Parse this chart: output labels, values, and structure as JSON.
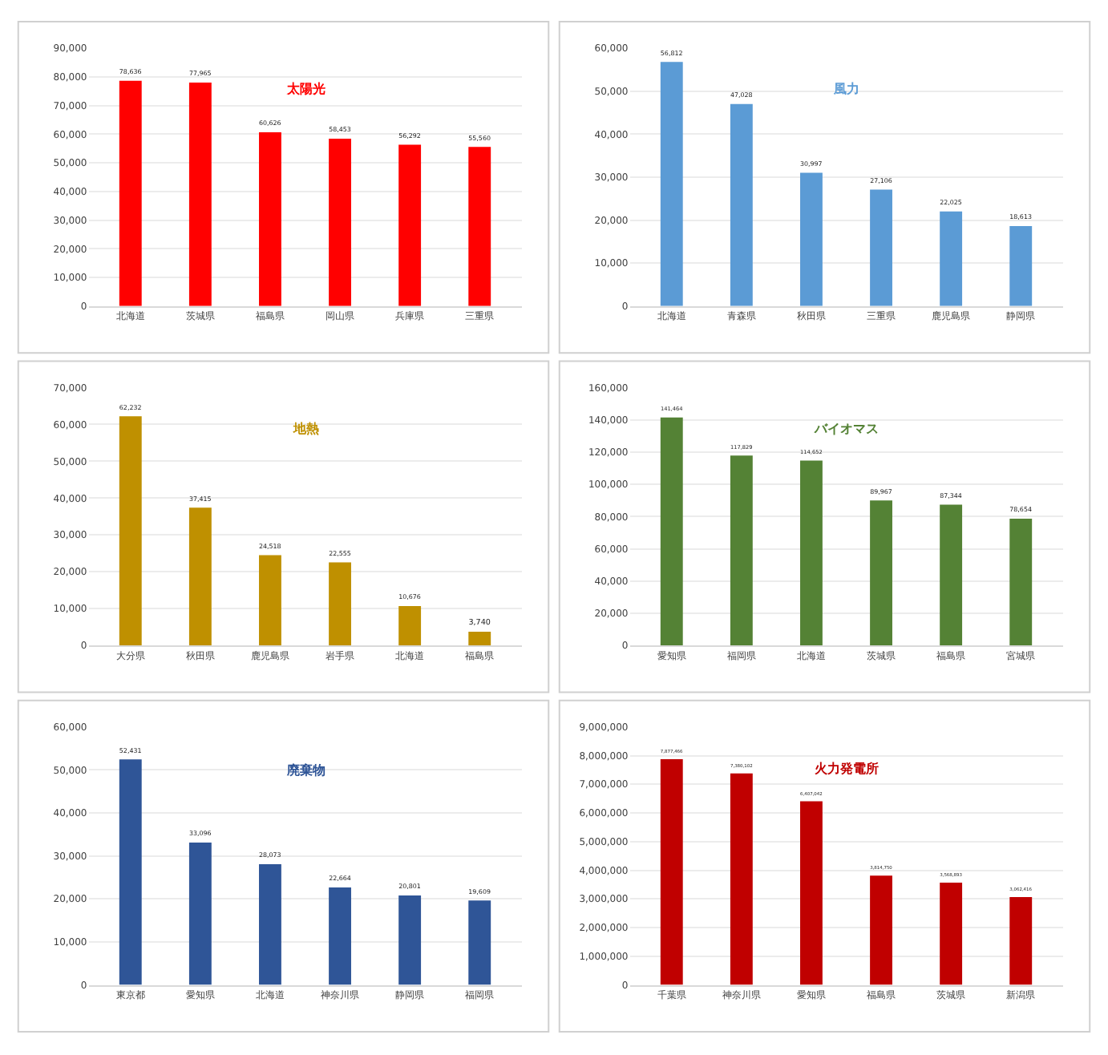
{
  "chart_data": [
    {
      "type": "bar",
      "title": "太陽光",
      "categories": [
        "北海道",
        "茨城県",
        "福島県",
        "岡山県",
        "兵庫県",
        "三重県"
      ],
      "series": [
        {
          "color": "#ff0000",
          "values": [
            78636,
            77965,
            60626,
            58453,
            56292,
            55560
          ],
          "value_labels": [
            "78,636",
            "77,965",
            "60,626",
            "58,453",
            "56,292",
            "55,560"
          ]
        }
      ],
      "ylim": [
        0,
        90000
      ],
      "yticks": [
        0,
        {
          "value": 10000,
          "label": "10,000"
        },
        {
          "value": 20000,
          "label": "20,000"
        },
        {
          "value": 30000,
          "label": "30,000"
        },
        {
          "value": 40000,
          "label": "40,000"
        },
        {
          "value": 50000,
          "label": "50,000"
        },
        {
          "value": 60000,
          "label": "60,000"
        },
        {
          "value": 70000,
          "label": "70,000"
        },
        {
          "value": 80000,
          "label": "80,000"
        },
        {
          "value": 90000,
          "label": "90,000"
        }
      ],
      "grid": "y"
    },
    {
      "type": "bar",
      "title": "風力",
      "categories": [
        "北海道",
        "青森県",
        "秋田県",
        "三重県",
        "鹿児島県",
        "静岡県"
      ],
      "series": [
        {
          "color": "#5b9bd5",
          "values": [
            56812,
            47028,
            30997,
            27106,
            22025,
            18613
          ],
          "value_labels": [
            "56,812",
            "47,028",
            "30,997",
            "27,106",
            "22,025",
            "18,613"
          ]
        }
      ],
      "ylim": [
        0,
        60000
      ],
      "yticks": [
        0,
        {
          "value": 10000,
          "label": "10,000"
        },
        {
          "value": 20000,
          "label": "20,000"
        },
        {
          "value": 30000,
          "label": "30,000"
        },
        {
          "value": 40000,
          "label": "40,000"
        },
        {
          "value": 50000,
          "label": "50,000"
        },
        {
          "value": 60000,
          "label": "60,000"
        }
      ],
      "grid": "y"
    },
    {
      "type": "bar",
      "title": "地熱",
      "categories": [
        "大分県",
        "秋田県",
        "鹿児島県",
        "岩手県",
        "北海道",
        "福島県"
      ],
      "series": [
        {
          "color": "#bf9000",
          "values": [
            62232,
            37415,
            24518,
            22555,
            10676,
            3740
          ],
          "value_labels": [
            "62,232",
            "37,415",
            "24,518",
            "22,555",
            "10,676",
            "3,740"
          ]
        }
      ],
      "ylim": [
        0,
        70000
      ],
      "yticks": [
        0,
        {
          "value": 10000,
          "label": "10,000"
        },
        {
          "value": 20000,
          "label": "20,000"
        },
        {
          "value": 30000,
          "label": "30,000"
        },
        {
          "value": 40000,
          "label": "40,000"
        },
        {
          "value": 50000,
          "label": "50,000"
        },
        {
          "value": 60000,
          "label": "60,000"
        },
        {
          "value": 70000,
          "label": "70,000"
        }
      ],
      "grid": "y"
    },
    {
      "type": "bar",
      "title": "バイオマス",
      "categories": [
        "愛知県",
        "福岡県",
        "北海道",
        "茨城県",
        "福島県",
        "宮城県"
      ],
      "series": [
        {
          "color": "#548235",
          "values": [
            141464,
            117829,
            114652,
            89967,
            87344,
            78654
          ],
          "value_labels": [
            "141,464",
            "117,829",
            "114,652",
            "89,967",
            "87,344",
            "78,654"
          ]
        }
      ],
      "ylim": [
        0,
        160000
      ],
      "yticks": [
        0,
        {
          "value": 20000,
          "label": "20,000"
        },
        {
          "value": 40000,
          "label": "40,000"
        },
        {
          "value": 60000,
          "label": "60,000"
        },
        {
          "value": 80000,
          "label": "80,000"
        },
        {
          "value": 100000,
          "label": "100,000"
        },
        {
          "value": 120000,
          "label": "120,000"
        },
        {
          "value": 140000,
          "label": "140,000"
        },
        {
          "value": 160000,
          "label": "160,000"
        }
      ],
      "grid": "y"
    },
    {
      "type": "bar",
      "title": "廃棄物",
      "categories": [
        "東京都",
        "愛知県",
        "北海道",
        "神奈川県",
        "静岡県",
        "福岡県"
      ],
      "series": [
        {
          "color": "#2f5597",
          "values": [
            52431,
            33096,
            28073,
            22664,
            20801,
            19609
          ],
          "value_labels": [
            "52,431",
            "33,096",
            "28,073",
            "22,664",
            "20,801",
            "19,609"
          ]
        }
      ],
      "ylim": [
        0,
        60000
      ],
      "yticks": [
        0,
        {
          "value": 10000,
          "label": "10,000"
        },
        {
          "value": 20000,
          "label": "20,000"
        },
        {
          "value": 30000,
          "label": "30,000"
        },
        {
          "value": 40000,
          "label": "40,000"
        },
        {
          "value": 50000,
          "label": "50,000"
        },
        {
          "value": 60000,
          "label": "60,000"
        }
      ],
      "grid": "y"
    },
    {
      "type": "bar",
      "title": "火力発電所",
      "categories": [
        "千葉県",
        "神奈川県",
        "愛知県",
        "福島県",
        "茨城県",
        "新潟県"
      ],
      "series": [
        {
          "color": "#c00000",
          "values": [
            7877466,
            7380102,
            6407042,
            3814750,
            3568893,
            3062416
          ],
          "value_labels": [
            "7,877,466",
            "7,380,102",
            "6,407,042",
            "3,814,750",
            "3,568,893",
            "3,062,416"
          ]
        }
      ],
      "ylim": [
        0,
        9000000
      ],
      "yticks": [
        0,
        {
          "value": 1000000,
          "label": "1,000,000"
        },
        {
          "value": 2000000,
          "label": "2,000,000"
        },
        {
          "value": 3000000,
          "label": "3,000,000"
        },
        {
          "value": 4000000,
          "label": "4,000,000"
        },
        {
          "value": 5000000,
          "label": "5,000,000"
        },
        {
          "value": 6000000,
          "label": "6,000,000"
        },
        {
          "value": 7000000,
          "label": "7,000,000"
        },
        {
          "value": 8000000,
          "label": "8,000,000"
        },
        {
          "value": 9000000,
          "label": "9,000,000"
        }
      ],
      "grid": "y"
    }
  ]
}
